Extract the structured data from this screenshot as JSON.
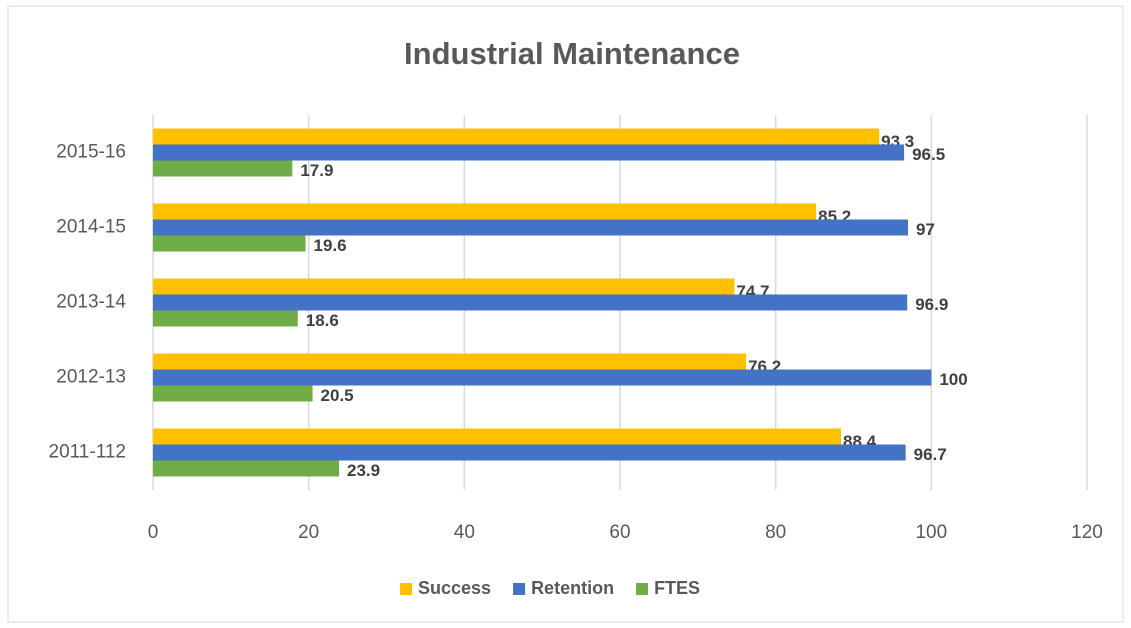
{
  "chart_data": {
    "type": "bar",
    "orientation": "horizontal",
    "title": "Industrial Maintenance",
    "categories": [
      "2011-112",
      "2012-13",
      "2013-14",
      "2014-15",
      "2015-16"
    ],
    "series": [
      {
        "name": "Success",
        "color": "#ffc000",
        "values": [
          88.4,
          76.2,
          74.7,
          85.2,
          93.3
        ]
      },
      {
        "name": "Retention",
        "color": "#4472c4",
        "values": [
          96.7,
          100,
          96.9,
          97,
          96.5
        ]
      },
      {
        "name": "FTES",
        "color": "#70ad47",
        "values": [
          23.9,
          20.5,
          18.6,
          19.6,
          17.9
        ]
      }
    ],
    "xlim": [
      0,
      120
    ],
    "xticks": [
      0,
      20,
      40,
      60,
      80,
      100,
      120
    ],
    "grid": true,
    "legend": "bottom"
  }
}
